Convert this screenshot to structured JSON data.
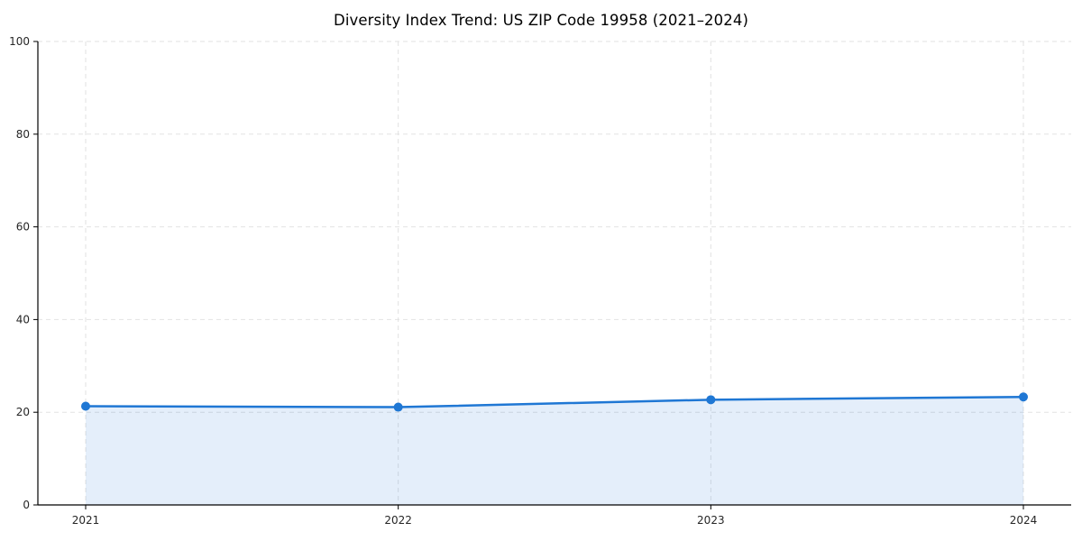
{
  "title": "Diversity Index Trend: US ZIP Code 19958 (2021–2024)",
  "chart_data": {
    "type": "area",
    "categories": [
      "2021",
      "2022",
      "2023",
      "2024"
    ],
    "series": [
      {
        "name": "Diversity Index",
        "values": [
          21.3,
          21.1,
          22.7,
          23.3
        ]
      }
    ],
    "title": "Diversity Index Trend: US ZIP Code 19958 (2021–2024)",
    "xlabel": "",
    "ylabel": "",
    "ylim": [
      0,
      100
    ],
    "yticks": [
      0,
      20,
      40,
      60,
      80,
      100
    ],
    "grid": true,
    "grid_style": "dashed",
    "legend": "none",
    "colors": {
      "line": "#1f77d4",
      "fill": "#1f77d4",
      "fill_opacity": "0.12",
      "grid": "#e2e2e2",
      "axis": "#000000",
      "tick_label": "#262626"
    }
  }
}
